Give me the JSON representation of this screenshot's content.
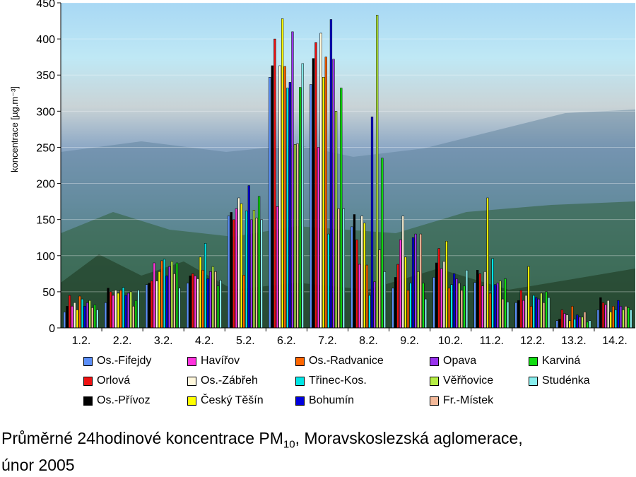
{
  "chart_data": {
    "type": "bar",
    "ylabel": "koncentrace [µg.m⁻³]",
    "ylim": [
      0,
      450
    ],
    "yticks": [
      0,
      50,
      100,
      150,
      200,
      250,
      300,
      350,
      400,
      450
    ],
    "categories": [
      "1.2.",
      "2.2.",
      "3.2.",
      "4.2.",
      "5.2.",
      "6.2.",
      "7.2.",
      "8.2.",
      "9.2.",
      "10.2.",
      "11.2.",
      "12.2.",
      "13.2.",
      "14.2."
    ],
    "series": [
      {
        "name": "Os.-Fifejdy",
        "color": "#5b8ff9",
        "values": [
          22,
          35,
          60,
          62,
          155,
          347,
          337,
          140,
          55,
          70,
          63,
          35,
          10,
          25
        ]
      },
      {
        "name": "Os.-Přívoz",
        "color": "#000000",
        "values": [
          30,
          55,
          62,
          72,
          160,
          363,
          373,
          157,
          70,
          90,
          80,
          38,
          12,
          42
        ]
      },
      {
        "name": "Orlová",
        "color": "#ee1111",
        "values": [
          45,
          50,
          65,
          75,
          150,
          400,
          395,
          122,
          88,
          110,
          75,
          52,
          25,
          35
        ]
      },
      {
        "name": "Havířov",
        "color": "#ff33dd",
        "values": [
          30,
          45,
          90,
          72,
          165,
          168,
          250,
          88,
          122,
          82,
          58,
          38,
          20,
          32
        ]
      },
      {
        "name": "Os.-Zábřeh",
        "color": "#fff8dc",
        "values": [
          35,
          52,
          65,
          68,
          180,
          363,
          408,
          155,
          155,
          92,
          78,
          45,
          18,
          38
        ]
      },
      {
        "name": "Český Těšín",
        "color": "#ffff00",
        "values": [
          25,
          48,
          78,
          98,
          172,
          428,
          347,
          145,
          98,
          120,
          180,
          85,
          10,
          22
        ]
      },
      {
        "name": "Os.-Radvanice",
        "color": "#ff6600",
        "values": [
          44,
          52,
          93,
          80,
          73,
          362,
          375,
          87,
          52,
          55,
          48,
          30,
          30,
          30
        ]
      },
      {
        "name": "Třinec-Kos.",
        "color": "#00e5e5",
        "values": [
          40,
          56,
          95,
          117,
          162,
          332,
          130,
          45,
          62,
          60,
          96,
          45,
          12,
          25
        ]
      },
      {
        "name": "Bohumín",
        "color": "#0000dd",
        "values": [
          30,
          45,
          72,
          68,
          197,
          340,
          427,
          292,
          125,
          75,
          60,
          42,
          18,
          38
        ]
      },
      {
        "name": "Opava",
        "color": "#9933ee",
        "values": [
          35,
          48,
          85,
          78,
          150,
          410,
          372,
          64,
          130,
          68,
          62,
          40,
          15,
          30
        ]
      },
      {
        "name": "Věřňovice",
        "color": "#b6ee44",
        "values": [
          38,
          50,
          92,
          85,
          163,
          254,
          300,
          433,
          78,
          62,
          65,
          48,
          15,
          25
        ]
      },
      {
        "name": "Fr.-Místek",
        "color": "#f4b99a",
        "values": [
          28,
          30,
          75,
          78,
          152,
          255,
          165,
          108,
          130,
          52,
          40,
          35,
          22,
          30
        ]
      },
      {
        "name": "Karviná",
        "color": "#11dd11",
        "values": [
          32,
          38,
          90,
          58,
          182,
          333,
          332,
          235,
          62,
          58,
          68,
          50,
          8,
          28
        ]
      },
      {
        "name": "Studénka",
        "color": "#88eeee",
        "values": [
          25,
          52,
          55,
          66,
          150,
          366,
          165,
          78,
          40,
          80,
          36,
          42,
          10,
          25
        ]
      }
    ]
  },
  "legend": [
    {
      "label": "Os.-Fifejdy",
      "color": "#5b8ff9"
    },
    {
      "label": "Havířov",
      "color": "#ff33dd"
    },
    {
      "label": "Os.-Radvanice",
      "color": "#ff6600"
    },
    {
      "label": "Opava",
      "color": "#9933ee"
    },
    {
      "label": "Karviná",
      "color": "#11dd11"
    },
    {
      "label": "Orlová",
      "color": "#ee1111"
    },
    {
      "label": "Os.-Zábřeh",
      "color": "#fff8dc"
    },
    {
      "label": "Třinec-Kos.",
      "color": "#00e5e5"
    },
    {
      "label": "Věřňovice",
      "color": "#b6ee44"
    },
    {
      "label": "Studénka",
      "color": "#88eeee"
    },
    {
      "label": "Os.-Přívoz",
      "color": "#000000"
    },
    {
      "label": "Český Těšín",
      "color": "#ffff00"
    },
    {
      "label": "Bohumín",
      "color": "#0000dd"
    },
    {
      "label": "Fr.-Místek",
      "color": "#f4b99a"
    }
  ],
  "caption": {
    "line1_before": "Průměrné 24hodinové koncentrace PM",
    "line1_sub": "10",
    "line1_after": ", Moravskoslezská aglomerace,",
    "line2": "únor 2005"
  }
}
